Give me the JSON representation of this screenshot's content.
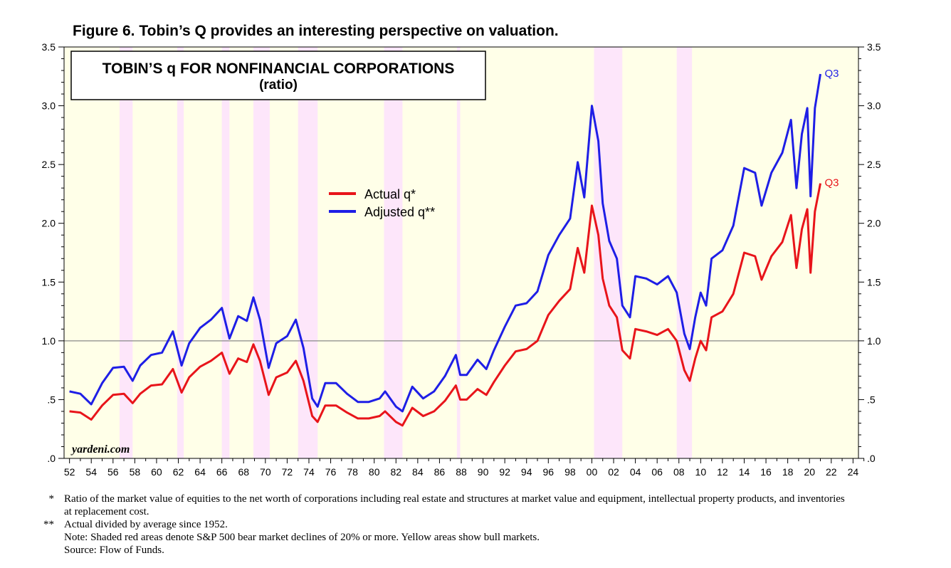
{
  "figure_title": "Figure 6.   Tobin’s Q provides an interesting perspective on valuation.",
  "chart_data": {
    "type": "line",
    "title": "TOBIN’S q FOR NONFINANCIAL CORPORATIONS",
    "subtitle": "(ratio)",
    "xlabel": "",
    "ylabel": "",
    "xlim": [
      1951.5,
      2024.5
    ],
    "ylim": [
      0,
      3.5
    ],
    "y_ticks": [
      0,
      0.5,
      1.0,
      1.5,
      2.0,
      2.5,
      3.0,
      3.5
    ],
    "y_tick_labels": [
      ".0",
      ".5",
      "1.0",
      "1.5",
      "2.0",
      "2.5",
      "3.0",
      "3.5"
    ],
    "x_ticks": [
      1952,
      1954,
      1956,
      1958,
      1960,
      1962,
      1964,
      1966,
      1968,
      1970,
      1972,
      1974,
      1976,
      1978,
      1980,
      1982,
      1984,
      1986,
      1988,
      1990,
      1992,
      1994,
      1996,
      1998,
      2000,
      2002,
      2004,
      2006,
      2008,
      2010,
      2012,
      2014,
      2016,
      2018,
      2020,
      2022,
      2024
    ],
    "x_tick_labels": [
      "52",
      "54",
      "56",
      "58",
      "60",
      "62",
      "64",
      "66",
      "68",
      "70",
      "72",
      "74",
      "76",
      "78",
      "80",
      "82",
      "84",
      "86",
      "88",
      "90",
      "92",
      "94",
      "96",
      "98",
      "00",
      "02",
      "04",
      "06",
      "08",
      "10",
      "12",
      "14",
      "16",
      "18",
      "20",
      "22",
      "24"
    ],
    "reference_line": 1.0,
    "grid": false,
    "legend_position": "upper-middle",
    "bear_markets": [
      [
        1956.6,
        1957.8
      ],
      [
        1961.9,
        1962.5
      ],
      [
        1966.0,
        1966.7
      ],
      [
        1968.9,
        1970.4
      ],
      [
        1973.0,
        1974.8
      ],
      [
        1980.9,
        1982.6
      ],
      [
        1987.6,
        1987.9
      ],
      [
        2000.2,
        2002.8
      ],
      [
        2007.8,
        2009.2
      ]
    ],
    "series": [
      {
        "name": "Actual q*",
        "color": "#e8141a",
        "end_label": "Q3",
        "points": [
          [
            1952,
            0.4
          ],
          [
            1953,
            0.39
          ],
          [
            1954,
            0.33
          ],
          [
            1955,
            0.45
          ],
          [
            1956,
            0.54
          ],
          [
            1957,
            0.55
          ],
          [
            1957.8,
            0.47
          ],
          [
            1958.5,
            0.55
          ],
          [
            1959.5,
            0.62
          ],
          [
            1960.5,
            0.63
          ],
          [
            1961.5,
            0.76
          ],
          [
            1962.3,
            0.56
          ],
          [
            1963,
            0.69
          ],
          [
            1964,
            0.78
          ],
          [
            1965,
            0.83
          ],
          [
            1966,
            0.9
          ],
          [
            1966.7,
            0.72
          ],
          [
            1967.5,
            0.85
          ],
          [
            1968.3,
            0.82
          ],
          [
            1968.9,
            0.97
          ],
          [
            1969.5,
            0.83
          ],
          [
            1970.3,
            0.54
          ],
          [
            1971,
            0.69
          ],
          [
            1972,
            0.73
          ],
          [
            1972.8,
            0.83
          ],
          [
            1973.5,
            0.66
          ],
          [
            1974.3,
            0.36
          ],
          [
            1974.8,
            0.31
          ],
          [
            1975.5,
            0.45
          ],
          [
            1976.5,
            0.45
          ],
          [
            1977.5,
            0.39
          ],
          [
            1978.5,
            0.34
          ],
          [
            1979.5,
            0.34
          ],
          [
            1980.5,
            0.36
          ],
          [
            1981,
            0.4
          ],
          [
            1982,
            0.31
          ],
          [
            1982.6,
            0.28
          ],
          [
            1983.5,
            0.43
          ],
          [
            1984.5,
            0.36
          ],
          [
            1985.5,
            0.4
          ],
          [
            1986.5,
            0.49
          ],
          [
            1987.5,
            0.62
          ],
          [
            1987.9,
            0.5
          ],
          [
            1988.5,
            0.5
          ],
          [
            1989.5,
            0.59
          ],
          [
            1990.3,
            0.54
          ],
          [
            1991,
            0.65
          ],
          [
            1992,
            0.79
          ],
          [
            1993,
            0.91
          ],
          [
            1994,
            0.93
          ],
          [
            1995,
            1.0
          ],
          [
            1996,
            1.22
          ],
          [
            1997,
            1.34
          ],
          [
            1998,
            1.44
          ],
          [
            1998.7,
            1.79
          ],
          [
            1999.3,
            1.58
          ],
          [
            2000,
            2.15
          ],
          [
            2000.6,
            1.9
          ],
          [
            2001,
            1.53
          ],
          [
            2001.6,
            1.3
          ],
          [
            2002.3,
            1.2
          ],
          [
            2002.8,
            0.92
          ],
          [
            2003.5,
            0.85
          ],
          [
            2004,
            1.1
          ],
          [
            2005,
            1.08
          ],
          [
            2006,
            1.05
          ],
          [
            2007,
            1.1
          ],
          [
            2007.8,
            1.0
          ],
          [
            2008.5,
            0.75
          ],
          [
            2009,
            0.66
          ],
          [
            2009.5,
            0.85
          ],
          [
            2010,
            1.0
          ],
          [
            2010.5,
            0.92
          ],
          [
            2011,
            1.2
          ],
          [
            2012,
            1.25
          ],
          [
            2013,
            1.4
          ],
          [
            2014,
            1.75
          ],
          [
            2015,
            1.72
          ],
          [
            2015.6,
            1.52
          ],
          [
            2016.5,
            1.72
          ],
          [
            2017.5,
            1.84
          ],
          [
            2018.3,
            2.07
          ],
          [
            2018.8,
            1.62
          ],
          [
            2019.3,
            1.95
          ],
          [
            2019.8,
            2.12
          ],
          [
            2020.1,
            1.58
          ],
          [
            2020.5,
            2.1
          ],
          [
            2021.0,
            2.34
          ]
        ]
      },
      {
        "name": "Adjusted q**",
        "color": "#1e1ee6",
        "end_label": "Q3",
        "points": [
          [
            1952,
            0.57
          ],
          [
            1953,
            0.55
          ],
          [
            1954,
            0.46
          ],
          [
            1955,
            0.64
          ],
          [
            1956,
            0.77
          ],
          [
            1957,
            0.78
          ],
          [
            1957.8,
            0.66
          ],
          [
            1958.5,
            0.79
          ],
          [
            1959.5,
            0.88
          ],
          [
            1960.5,
            0.9
          ],
          [
            1961.5,
            1.08
          ],
          [
            1962.3,
            0.79
          ],
          [
            1963,
            0.98
          ],
          [
            1964,
            1.11
          ],
          [
            1965,
            1.18
          ],
          [
            1966,
            1.28
          ],
          [
            1966.7,
            1.02
          ],
          [
            1967.5,
            1.21
          ],
          [
            1968.3,
            1.17
          ],
          [
            1968.9,
            1.37
          ],
          [
            1969.5,
            1.18
          ],
          [
            1970.3,
            0.77
          ],
          [
            1971,
            0.98
          ],
          [
            1972,
            1.04
          ],
          [
            1972.8,
            1.18
          ],
          [
            1973.5,
            0.94
          ],
          [
            1974.3,
            0.51
          ],
          [
            1974.8,
            0.44
          ],
          [
            1975.5,
            0.64
          ],
          [
            1976.5,
            0.64
          ],
          [
            1977.5,
            0.55
          ],
          [
            1978.5,
            0.48
          ],
          [
            1979.5,
            0.48
          ],
          [
            1980.5,
            0.51
          ],
          [
            1981,
            0.57
          ],
          [
            1982,
            0.44
          ],
          [
            1982.6,
            0.4
          ],
          [
            1983.5,
            0.61
          ],
          [
            1984.5,
            0.51
          ],
          [
            1985.5,
            0.57
          ],
          [
            1986.5,
            0.7
          ],
          [
            1987.5,
            0.88
          ],
          [
            1987.9,
            0.71
          ],
          [
            1988.5,
            0.71
          ],
          [
            1989.5,
            0.84
          ],
          [
            1990.3,
            0.76
          ],
          [
            1991,
            0.92
          ],
          [
            1992,
            1.12
          ],
          [
            1993,
            1.3
          ],
          [
            1994,
            1.32
          ],
          [
            1995,
            1.42
          ],
          [
            1996,
            1.73
          ],
          [
            1997,
            1.9
          ],
          [
            1998,
            2.04
          ],
          [
            1998.7,
            2.52
          ],
          [
            1999.3,
            2.22
          ],
          [
            2000,
            3.0
          ],
          [
            2000.6,
            2.7
          ],
          [
            2001,
            2.17
          ],
          [
            2001.6,
            1.85
          ],
          [
            2002.3,
            1.7
          ],
          [
            2002.8,
            1.3
          ],
          [
            2003.5,
            1.2
          ],
          [
            2004,
            1.55
          ],
          [
            2005,
            1.53
          ],
          [
            2006,
            1.48
          ],
          [
            2007,
            1.55
          ],
          [
            2007.8,
            1.41
          ],
          [
            2008.5,
            1.06
          ],
          [
            2009,
            0.93
          ],
          [
            2009.5,
            1.2
          ],
          [
            2010,
            1.41
          ],
          [
            2010.5,
            1.3
          ],
          [
            2011,
            1.7
          ],
          [
            2012,
            1.77
          ],
          [
            2013,
            1.98
          ],
          [
            2014,
            2.47
          ],
          [
            2015,
            2.43
          ],
          [
            2015.6,
            2.15
          ],
          [
            2016.5,
            2.43
          ],
          [
            2017.5,
            2.6
          ],
          [
            2018.3,
            2.88
          ],
          [
            2018.8,
            2.3
          ],
          [
            2019.3,
            2.76
          ],
          [
            2019.8,
            2.98
          ],
          [
            2020.1,
            2.23
          ],
          [
            2020.5,
            2.98
          ],
          [
            2021.0,
            3.27
          ]
        ]
      }
    ],
    "watermark": "yardeni.com"
  },
  "notes": [
    {
      "mark": "*",
      "text": "Ratio of the market value of equities to the net worth of corporations including real estate and structures at market value and equipment, intellectual property products, and inventories at replacement cost."
    },
    {
      "mark": "**",
      "text": "Actual divided by average since 1952."
    },
    {
      "mark": "",
      "text": "Note: Shaded red areas denote S&P 500 bear market declines of 20% or more. Yellow areas show bull markets."
    },
    {
      "mark": "",
      "text": "Source: Flow of Funds."
    }
  ]
}
